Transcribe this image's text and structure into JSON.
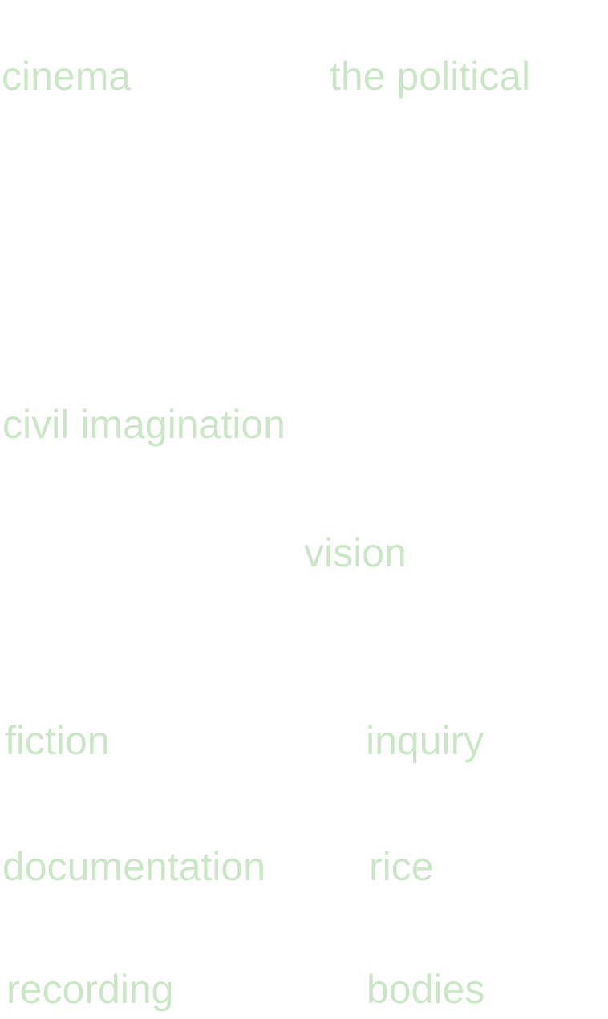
{
  "text_color": "#cbe6c6",
  "background_color": "#ffffff",
  "words": {
    "cinema": "cinema",
    "the_political": "the political",
    "civil_imagination": "civil imagination",
    "vision": "vision",
    "fiction": "fiction",
    "inquiry": "inquiry",
    "documentation": "documentation",
    "rice": "rice",
    "recording": "recording",
    "bodies": "bodies"
  }
}
